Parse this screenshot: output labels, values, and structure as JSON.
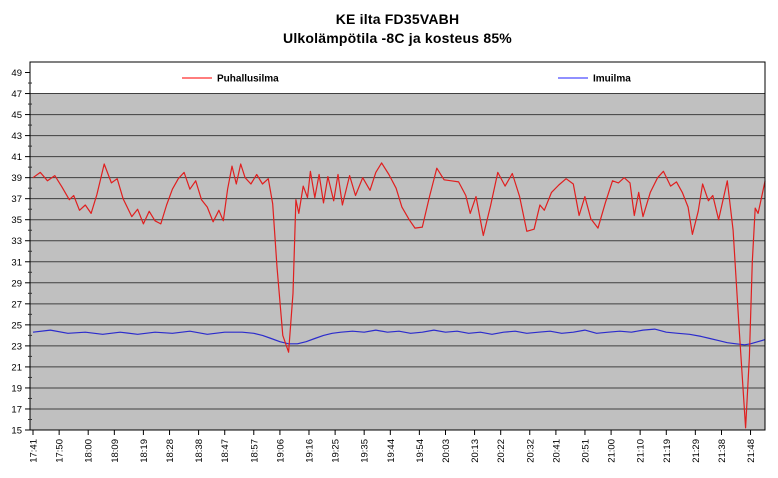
{
  "chart_data": {
    "type": "line",
    "title": "KE ilta FD35VABH",
    "subtitle": "Ulkolämpötila -8C ja kosteus 85%",
    "xlabel": "",
    "ylabel": "",
    "ylim": [
      15,
      50
    ],
    "y_tick_min": 15,
    "y_tick_max": 49,
    "y_tick_step": 2,
    "grid": true,
    "plot_bg_color": "#c0c0c0",
    "grid_color": "#3f3f3f",
    "legend_position": "top-inside",
    "x_tick_labels": [
      "17:41",
      "17:50",
      "18:00",
      "18:09",
      "18:19",
      "18:28",
      "18:38",
      "18:47",
      "18:57",
      "19:06",
      "19:16",
      "19:25",
      "19:35",
      "19:44",
      "19:54",
      "20:03",
      "20:13",
      "20:22",
      "20:32",
      "20:41",
      "20:51",
      "21:00",
      "21:10",
      "21:19",
      "21:29",
      "21:38",
      "21:48"
    ],
    "x_unit": "minutes-since-17:41",
    "series": [
      {
        "name": "Puhallusilma",
        "color": "#e01f1f",
        "legend_color": "#ff5252",
        "points": [
          [
            0,
            39
          ],
          [
            2.5,
            39.5
          ],
          [
            5,
            38.7
          ],
          [
            7.5,
            39.2
          ],
          [
            10,
            38.1
          ],
          [
            12.5,
            36.9
          ],
          [
            14,
            37.3
          ],
          [
            16,
            35.9
          ],
          [
            18,
            36.4
          ],
          [
            20,
            35.6
          ],
          [
            22,
            37.4
          ],
          [
            24.5,
            40.3
          ],
          [
            27,
            38.5
          ],
          [
            29,
            38.9
          ],
          [
            31,
            37
          ],
          [
            34,
            35.3
          ],
          [
            36,
            36
          ],
          [
            38,
            34.6
          ],
          [
            40,
            35.8
          ],
          [
            42,
            34.9
          ],
          [
            44,
            34.6
          ],
          [
            46,
            36.4
          ],
          [
            48,
            37.9
          ],
          [
            50,
            38.9
          ],
          [
            52,
            39.5
          ],
          [
            54,
            37.9
          ],
          [
            56,
            38.7
          ],
          [
            58,
            36.9
          ],
          [
            60,
            36.2
          ],
          [
            62,
            34.8
          ],
          [
            64,
            35.9
          ],
          [
            65.5,
            34.9
          ],
          [
            67,
            37.9
          ],
          [
            68.5,
            40.1
          ],
          [
            70,
            38.4
          ],
          [
            71.5,
            40.3
          ],
          [
            73,
            39
          ],
          [
            75,
            38.4
          ],
          [
            77,
            39.3
          ],
          [
            79,
            38.4
          ],
          [
            81,
            38.9
          ],
          [
            82.5,
            36.5
          ],
          [
            84,
            30.5
          ],
          [
            86,
            24
          ],
          [
            88,
            22.4
          ],
          [
            89.5,
            28
          ],
          [
            90.5,
            36.9
          ],
          [
            91.5,
            35.6
          ],
          [
            93,
            38.2
          ],
          [
            94.5,
            37.1
          ],
          [
            95.5,
            39.6
          ],
          [
            97,
            37.1
          ],
          [
            98.5,
            39.3
          ],
          [
            100,
            36.6
          ],
          [
            101.5,
            39.1
          ],
          [
            103.5,
            36.8
          ],
          [
            105,
            39.3
          ],
          [
            106.5,
            36.4
          ],
          [
            109,
            39.2
          ],
          [
            111,
            37.3
          ],
          [
            113.5,
            39
          ],
          [
            116,
            37.8
          ],
          [
            118,
            39.5
          ],
          [
            120,
            40.4
          ],
          [
            122.5,
            39.3
          ],
          [
            125,
            38
          ],
          [
            127,
            36.2
          ],
          [
            129.5,
            35
          ],
          [
            131.5,
            34.2
          ],
          [
            134,
            34.3
          ],
          [
            136.5,
            37.2
          ],
          [
            139,
            39.9
          ],
          [
            141.5,
            38.8
          ],
          [
            144,
            38.7
          ],
          [
            146.5,
            38.6
          ],
          [
            149,
            37.3
          ],
          [
            150.5,
            35.6
          ],
          [
            152.5,
            37.2
          ],
          [
            155,
            33.5
          ],
          [
            157.5,
            36.3
          ],
          [
            160,
            39.5
          ],
          [
            162.5,
            38.2
          ],
          [
            165,
            39.4
          ],
          [
            167.5,
            37.2
          ],
          [
            170,
            33.9
          ],
          [
            172.5,
            34.1
          ],
          [
            174.5,
            36.4
          ],
          [
            176,
            35.9
          ],
          [
            178.5,
            37.6
          ],
          [
            181,
            38.3
          ],
          [
            183.5,
            38.9
          ],
          [
            186,
            38.4
          ],
          [
            188,
            35.4
          ],
          [
            190,
            37.2
          ],
          [
            192,
            35.1
          ],
          [
            194.5,
            34.2
          ],
          [
            197,
            36.6
          ],
          [
            199.5,
            38.7
          ],
          [
            201.5,
            38.5
          ],
          [
            203.5,
            39
          ],
          [
            205.5,
            38.5
          ],
          [
            207,
            35.4
          ],
          [
            208.5,
            37.6
          ],
          [
            210,
            35.3
          ],
          [
            212.5,
            37.6
          ],
          [
            215,
            39
          ],
          [
            217,
            39.6
          ],
          [
            219.5,
            38.2
          ],
          [
            221.5,
            38.6
          ],
          [
            223.5,
            37.6
          ],
          [
            225.5,
            36.2
          ],
          [
            227,
            33.6
          ],
          [
            229,
            35.8
          ],
          [
            230.5,
            38.4
          ],
          [
            232.5,
            36.8
          ],
          [
            234,
            37.3
          ],
          [
            236,
            35
          ],
          [
            239,
            38.7
          ],
          [
            241,
            34
          ],
          [
            243,
            25
          ],
          [
            245.3,
            15.2
          ],
          [
            246.6,
            22
          ],
          [
            247.6,
            31
          ],
          [
            248.6,
            36.1
          ],
          [
            249.6,
            35.6
          ],
          [
            252,
            38.7
          ]
        ]
      },
      {
        "name": "Imuilma",
        "color": "#2b2bcc",
        "legend_color": "#6b6bff",
        "points": [
          [
            0,
            24.3
          ],
          [
            6,
            24.5
          ],
          [
            12,
            24.2
          ],
          [
            18,
            24.3
          ],
          [
            24,
            24.1
          ],
          [
            30,
            24.3
          ],
          [
            36,
            24.1
          ],
          [
            42,
            24.3
          ],
          [
            48,
            24.2
          ],
          [
            54,
            24.4
          ],
          [
            60,
            24.1
          ],
          [
            66,
            24.3
          ],
          [
            72,
            24.3
          ],
          [
            76,
            24.2
          ],
          [
            79,
            24
          ],
          [
            82,
            23.7
          ],
          [
            85,
            23.4
          ],
          [
            88,
            23.2
          ],
          [
            91,
            23.2
          ],
          [
            94,
            23.4
          ],
          [
            97,
            23.7
          ],
          [
            100,
            24
          ],
          [
            103,
            24.2
          ],
          [
            106,
            24.3
          ],
          [
            110,
            24.4
          ],
          [
            114,
            24.3
          ],
          [
            118,
            24.5
          ],
          [
            122,
            24.3
          ],
          [
            126,
            24.4
          ],
          [
            130,
            24.2
          ],
          [
            134,
            24.3
          ],
          [
            138,
            24.5
          ],
          [
            142,
            24.3
          ],
          [
            146,
            24.4
          ],
          [
            150,
            24.2
          ],
          [
            154,
            24.3
          ],
          [
            158,
            24.1
          ],
          [
            162,
            24.3
          ],
          [
            166,
            24.4
          ],
          [
            170,
            24.2
          ],
          [
            174,
            24.3
          ],
          [
            178,
            24.4
          ],
          [
            182,
            24.2
          ],
          [
            186,
            24.3
          ],
          [
            190,
            24.5
          ],
          [
            194,
            24.2
          ],
          [
            198,
            24.3
          ],
          [
            202,
            24.4
          ],
          [
            206,
            24.3
          ],
          [
            210,
            24.5
          ],
          [
            214,
            24.6
          ],
          [
            218,
            24.3
          ],
          [
            222,
            24.2
          ],
          [
            226,
            24.1
          ],
          [
            230,
            23.9
          ],
          [
            233,
            23.7
          ],
          [
            236,
            23.5
          ],
          [
            239,
            23.3
          ],
          [
            242,
            23.2
          ],
          [
            245,
            23.1
          ],
          [
            247,
            23.2
          ],
          [
            249.5,
            23.4
          ],
          [
            252,
            23.6
          ]
        ]
      }
    ]
  }
}
